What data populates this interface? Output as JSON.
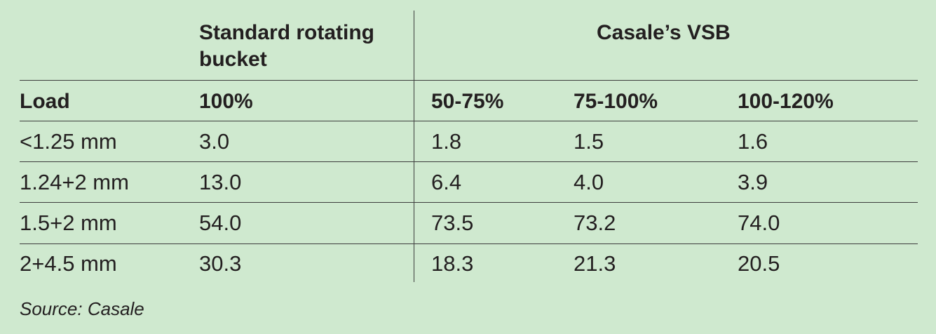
{
  "header": {
    "group_standard": [
      "Standard rotating",
      "bucket"
    ],
    "group_casale": "Casale’s VSB"
  },
  "columns": [
    "Load",
    "100%",
    "50-75%",
    "75-100%",
    "100-120%"
  ],
  "rows": [
    [
      "<1.25 mm",
      "3.0",
      "1.8",
      "1.5",
      "1.6"
    ],
    [
      "1.24+2 mm",
      "13.0",
      "6.4",
      "4.0",
      "3.9"
    ],
    [
      "1.5+2 mm",
      "54.0",
      "73.5",
      "73.2",
      "74.0"
    ],
    [
      "2+4.5 mm",
      "30.3",
      "18.3",
      "21.3",
      "20.5"
    ]
  ],
  "source": "Source: Casale",
  "colors": {
    "background": "#cfe9cf",
    "text": "#231f20",
    "rule": "#3c3c3c"
  }
}
